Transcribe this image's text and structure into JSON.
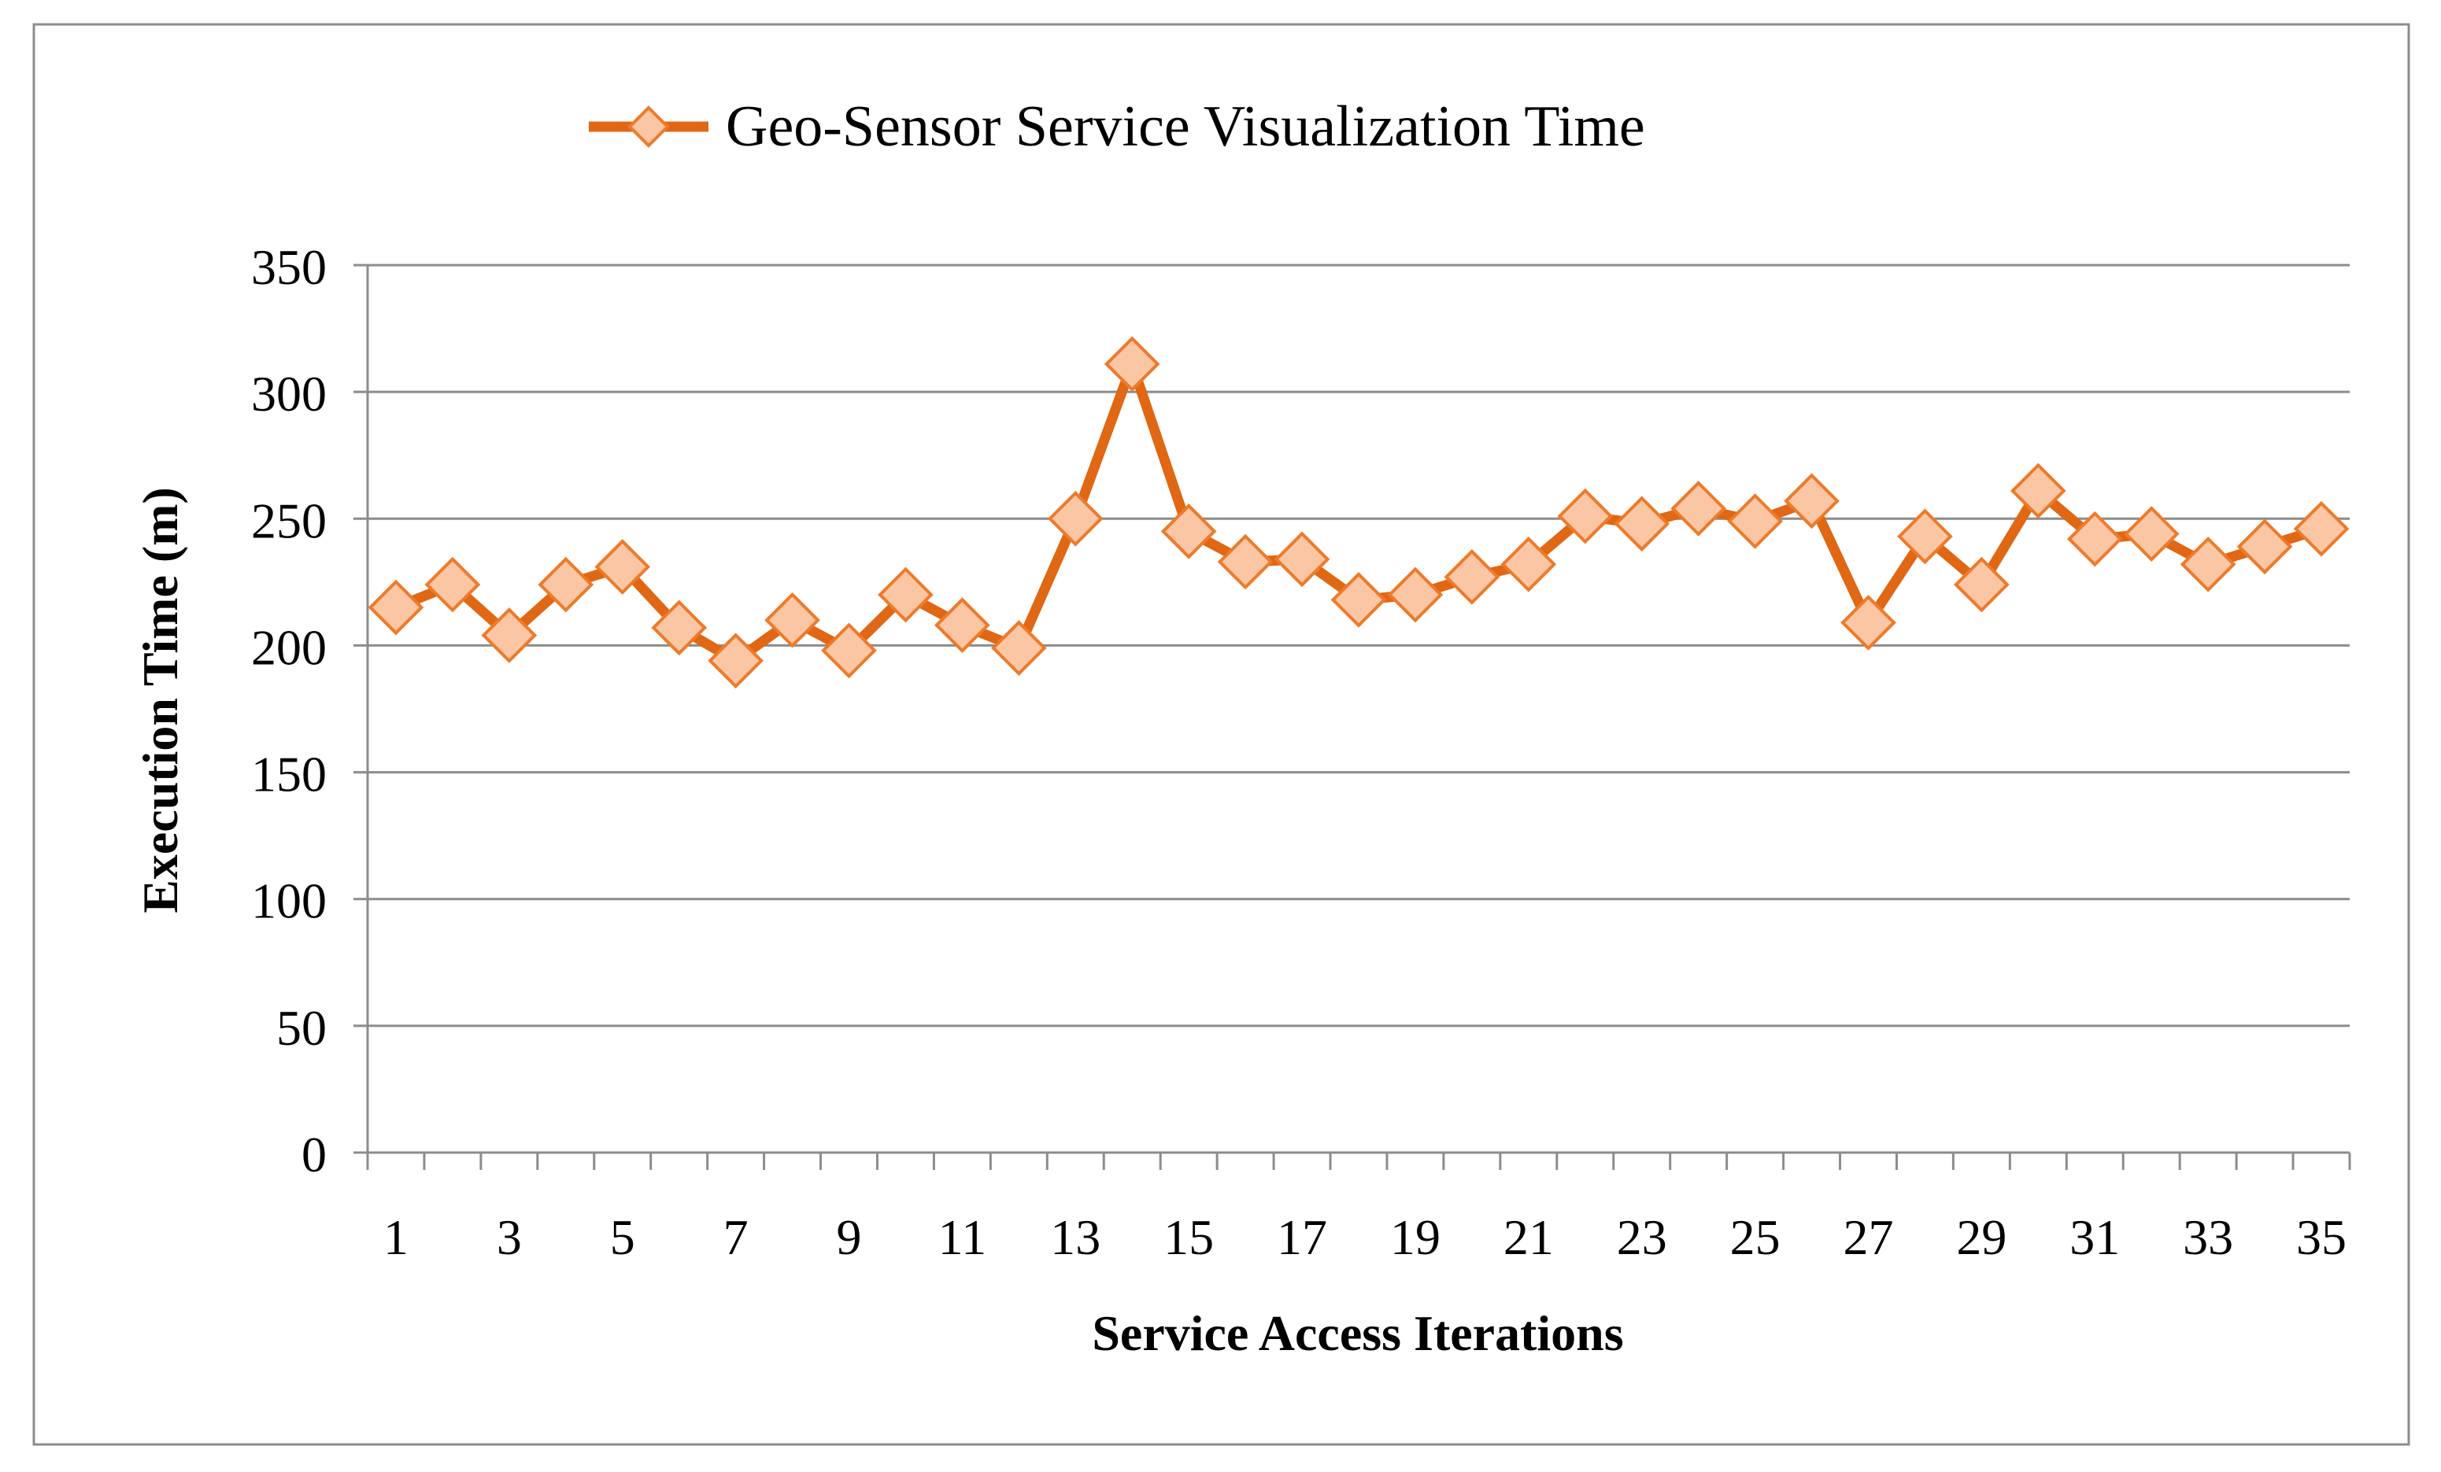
{
  "chart_data": {
    "type": "line",
    "title": "",
    "xlabel": "Service Access Iterations",
    "ylabel": "Execution Time (m)",
    "ylim": [
      0,
      350
    ],
    "ytick_labels": [
      "0",
      "50",
      "100",
      "150",
      "200",
      "250",
      "300",
      "350"
    ],
    "xtick_labels": [
      "1",
      "3",
      "5",
      "7",
      "9",
      "11",
      "13",
      "15",
      "17",
      "19",
      "21",
      "23",
      "25",
      "27",
      "29",
      "31",
      "33",
      "35"
    ],
    "grid": true,
    "legend_position": "top-center",
    "series": [
      {
        "name": "Geo-Sensor Service Visualization Time",
        "x": [
          1,
          2,
          3,
          4,
          5,
          6,
          7,
          8,
          9,
          10,
          11,
          12,
          13,
          14,
          15,
          16,
          17,
          18,
          19,
          20,
          21,
          22,
          23,
          24,
          25,
          26,
          27,
          28,
          29,
          30,
          31,
          32,
          33,
          34,
          35
        ],
        "values": [
          215,
          224,
          204,
          224,
          231,
          207,
          194,
          210,
          198,
          220,
          208,
          199,
          250,
          311,
          245,
          233,
          234,
          218,
          220,
          227,
          232,
          251,
          248,
          254,
          249,
          257,
          209,
          243,
          224,
          261,
          242,
          244,
          232,
          239,
          246
        ]
      }
    ]
  },
  "colors": {
    "line": "#e06714",
    "marker_fill": "#fbc6a4",
    "marker_stroke": "#ee7a2a",
    "grid": "#8c8c8c",
    "text": "#000000",
    "frame": "#8c8c8c"
  }
}
